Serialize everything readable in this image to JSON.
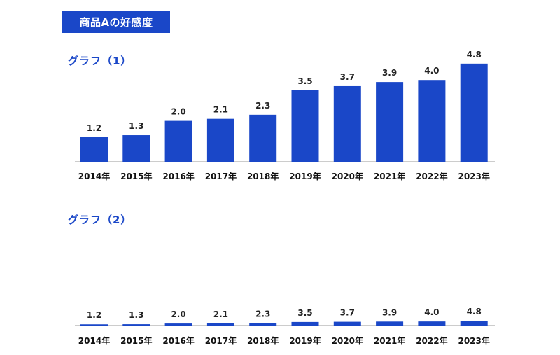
{
  "header": {
    "title": "商品Aの好感度"
  },
  "chart_data": [
    {
      "type": "bar",
      "title": "グラフ（1）",
      "categories": [
        "2014年",
        "2015年",
        "2016年",
        "2017年",
        "2018年",
        "2019年",
        "2020年",
        "2021年",
        "2022年",
        "2023年"
      ],
      "values": [
        1.2,
        1.3,
        2.0,
        2.1,
        2.3,
        3.5,
        3.7,
        3.9,
        4.0,
        4.8
      ],
      "value_labels": [
        "1.2",
        "1.3",
        "2.0",
        "2.1",
        "2.3",
        "3.5",
        "3.7",
        "3.9",
        "4.0",
        "4.8"
      ],
      "ylim": [
        0,
        5
      ],
      "color": "#1a47c8",
      "grid": false
    },
    {
      "type": "bar",
      "title": "グラフ（2）",
      "categories": [
        "2014年",
        "2015年",
        "2016年",
        "2017年",
        "2018年",
        "2019年",
        "2020年",
        "2021年",
        "2022年",
        "2023年"
      ],
      "values": [
        1.2,
        1.3,
        2.0,
        2.1,
        2.3,
        3.5,
        3.7,
        3.9,
        4.0,
        4.8
      ],
      "value_labels": [
        "1.2",
        "1.3",
        "2.0",
        "2.1",
        "2.3",
        "3.5",
        "3.7",
        "3.9",
        "4.0",
        "4.8"
      ],
      "ylim": [
        0,
        100
      ],
      "color": "#1a47c8",
      "grid": false
    }
  ]
}
